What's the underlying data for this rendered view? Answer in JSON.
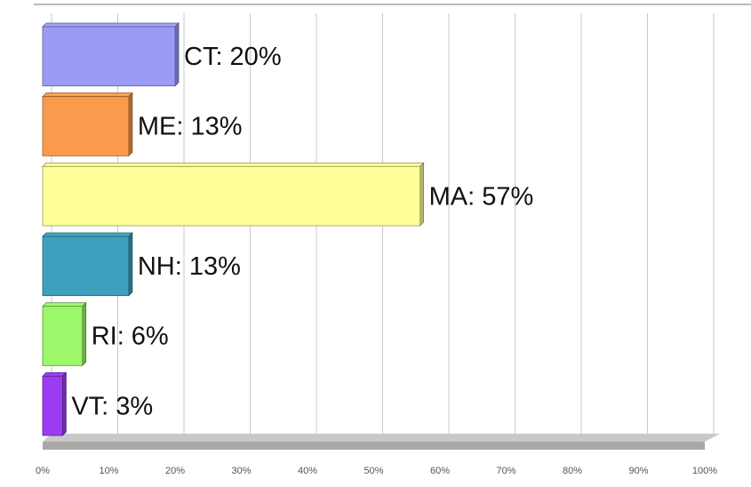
{
  "chart_data": {
    "type": "bar",
    "orientation": "horizontal",
    "categories": [
      "CT",
      "ME",
      "MA",
      "NH",
      "RI",
      "VT"
    ],
    "values": [
      20,
      13,
      57,
      13,
      6,
      3
    ],
    "value_labels": [
      "CT: 20%",
      "ME: 13%",
      "MA: 57%",
      "NH: 13%",
      "RI: 6%",
      "VT: 3%"
    ],
    "colors": [
      "#9b9bf7",
      "#fb9a4c",
      "#ffff9a",
      "#3fa0bd",
      "#9cf76a",
      "#9c3cf2"
    ],
    "xlim": [
      0,
      100
    ],
    "xticks": [
      {
        "value": 0,
        "label": "0%"
      },
      {
        "value": 10,
        "label": "10%"
      },
      {
        "value": 20,
        "label": "20%"
      },
      {
        "value": 30,
        "label": "30%"
      },
      {
        "value": 40,
        "label": "40%"
      },
      {
        "value": 50,
        "label": "50%"
      },
      {
        "value": 60,
        "label": "60%"
      },
      {
        "value": 70,
        "label": "70%"
      },
      {
        "value": 80,
        "label": "80%"
      },
      {
        "value": 90,
        "label": "90%"
      },
      {
        "value": 100,
        "label": "100%"
      }
    ],
    "grid": true
  }
}
